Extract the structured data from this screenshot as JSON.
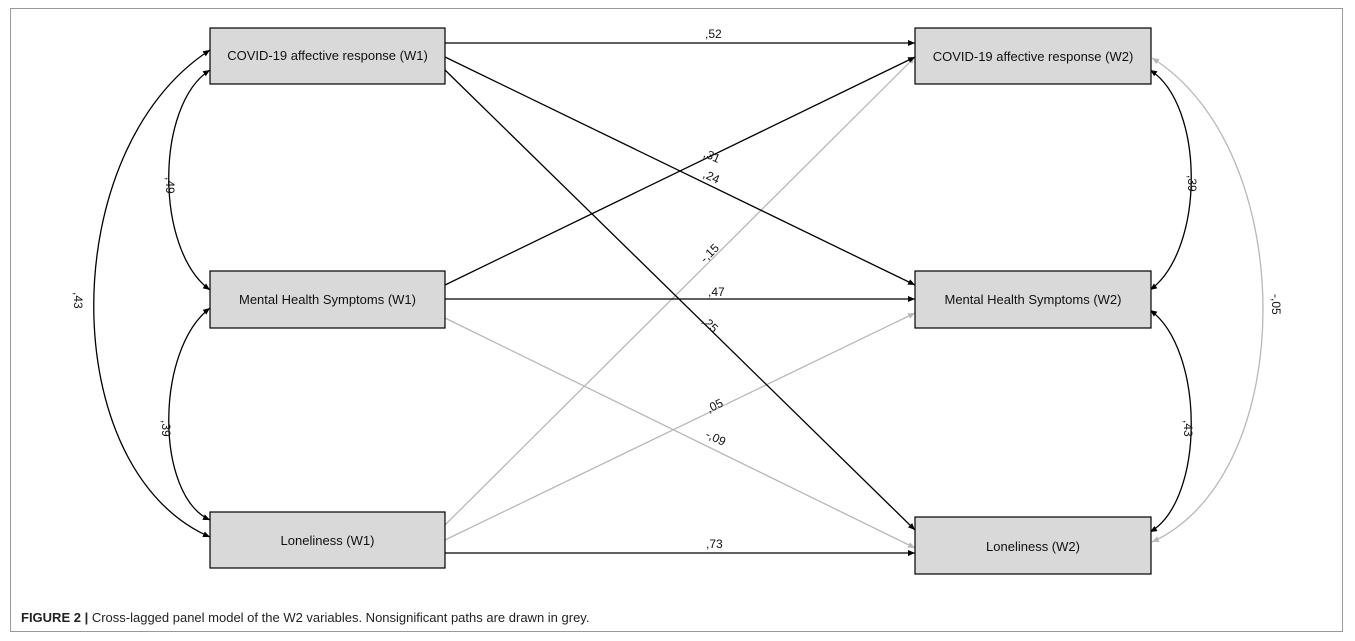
{
  "colors": {
    "significant": "#000000",
    "nonsignificant": "#b8b8b8",
    "box_fill": "#d9d9d9"
  },
  "nodes": {
    "covid_w1": "COVID-19 affective response (W1)",
    "mental_w1": "Mental Health Symptoms (W1)",
    "lonely_w1": "Loneliness (W1)",
    "covid_w2": "COVID-19 affective response (W2)",
    "mental_w2": "Mental Health Symptoms (W2)",
    "lonely_w2": "Loneliness (W2)"
  },
  "paths": [
    {
      "from": "covid_w1",
      "to": "covid_w2",
      "coef": ",52",
      "significant": true
    },
    {
      "from": "mental_w1",
      "to": "covid_w2",
      "coef": ",31",
      "significant": true
    },
    {
      "from": "covid_w1",
      "to": "mental_w2",
      "coef": ",24",
      "significant": true
    },
    {
      "from": "lonely_w1",
      "to": "covid_w2",
      "coef": "-,15",
      "significant": false
    },
    {
      "from": "mental_w1",
      "to": "mental_w2",
      "coef": ",47",
      "significant": true
    },
    {
      "from": "covid_w1",
      "to": "lonely_w2",
      "coef": ",25",
      "significant": true
    },
    {
      "from": "lonely_w1",
      "to": "mental_w2",
      "coef": ",05",
      "significant": false
    },
    {
      "from": "mental_w1",
      "to": "lonely_w2",
      "coef": "-,09",
      "significant": false
    },
    {
      "from": "lonely_w1",
      "to": "lonely_w2",
      "coef": ",73",
      "significant": true
    }
  ],
  "correlations": [
    {
      "a": "covid_w1",
      "b": "mental_w1",
      "coef": ",49",
      "significant": true
    },
    {
      "a": "mental_w1",
      "b": "lonely_w1",
      "coef": ",39",
      "significant": true
    },
    {
      "a": "covid_w1",
      "b": "lonely_w1",
      "coef": ",43",
      "significant": true
    },
    {
      "a": "covid_w2",
      "b": "mental_w2",
      "coef": ",39",
      "significant": true
    },
    {
      "a": "mental_w2",
      "b": "lonely_w2",
      "coef": ",43",
      "significant": true
    },
    {
      "a": "covid_w2",
      "b": "lonely_w2",
      "coef": "-,05",
      "significant": false
    }
  ],
  "caption": {
    "label": "FIGURE 2 |",
    "text": " Cross-lagged panel model of the W2 variables. Nonsignificant paths are drawn in grey."
  }
}
